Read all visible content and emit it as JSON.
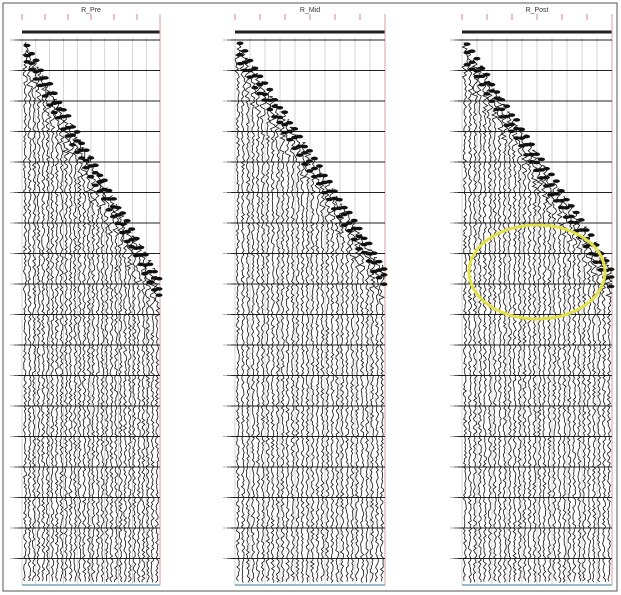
{
  "panels": [
    {
      "title": "R_Pre"
    },
    {
      "title": "R_Mid"
    },
    {
      "title": "R_Post"
    }
  ]
}
